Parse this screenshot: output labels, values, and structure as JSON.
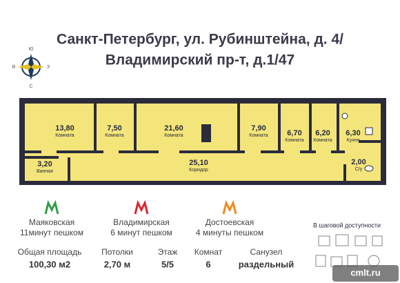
{
  "header": {
    "title_line_1": "Санкт-Петербург, ул. Рубинштейна, д. 4/",
    "title_line_2": "Владимирский пр-т, д.1/47"
  },
  "compass": {
    "north": "С",
    "south": "Ю",
    "west": "З",
    "east": "В"
  },
  "rooms": [
    {
      "area": "13,80",
      "name": "Комната"
    },
    {
      "area": "7,50",
      "name": "Комната"
    },
    {
      "area": "21,60",
      "name": "Комната"
    },
    {
      "area": "7,90",
      "name": "Комната"
    },
    {
      "area": "6,70",
      "name": "Комната"
    },
    {
      "area": "6,20",
      "name": "Комната"
    },
    {
      "area": "6,30",
      "name": "Кухня"
    },
    {
      "area": "3,20",
      "name": "Ванная"
    },
    {
      "area": "25,10",
      "name": "Коридор"
    },
    {
      "area": "2,00",
      "name": "С/у"
    }
  ],
  "metro": [
    {
      "station": "Маяковская",
      "walk": "11минут пешком"
    },
    {
      "station": "Владимирская",
      "walk": "6 минут пешком"
    },
    {
      "station": "Достоевская",
      "walk": "4 минуты пешком"
    }
  ],
  "nearby": "В шаговой доступности",
  "stats": [
    {
      "label": "Общая площадь",
      "value": "100,30 м2"
    },
    {
      "label": "Потолки",
      "value": "2,70 м"
    },
    {
      "label": "Этаж",
      "value": "5/5"
    },
    {
      "label": "Комнат",
      "value": "6"
    },
    {
      "label": "Санузел",
      "value": "раздельный"
    }
  ],
  "watermark": "cmlt.ru"
}
